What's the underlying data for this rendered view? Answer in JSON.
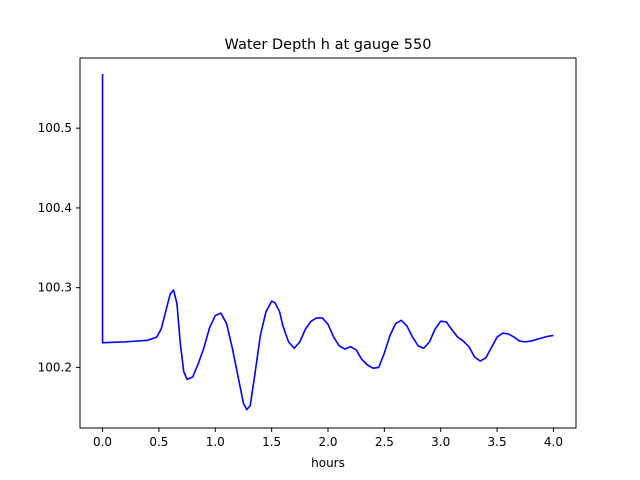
{
  "chart_data": {
    "type": "line",
    "title": "Water Depth h at gauge 550",
    "xlabel": "hours",
    "ylabel": "",
    "xlim": [
      -0.2,
      4.2
    ],
    "ylim": [
      100.124,
      100.588
    ],
    "xticks": [
      0.0,
      0.5,
      1.0,
      1.5,
      2.0,
      2.5,
      3.0,
      3.5,
      4.0
    ],
    "xtick_labels": [
      "0.0",
      "0.5",
      "1.0",
      "1.5",
      "2.0",
      "2.5",
      "3.0",
      "3.5",
      "4.0"
    ],
    "yticks": [
      100.2,
      100.3,
      100.4,
      100.5
    ],
    "ytick_labels": [
      "100.2",
      "100.3",
      "100.4",
      "100.5"
    ],
    "grid": false,
    "legend": "none",
    "series": [
      {
        "color": "#0000ff",
        "x": [
          0.0,
          0.0,
          0.01,
          0.2,
          0.4,
          0.48,
          0.52,
          0.56,
          0.6,
          0.63,
          0.66,
          0.69,
          0.72,
          0.75,
          0.8,
          0.85,
          0.9,
          0.95,
          1.0,
          1.05,
          1.1,
          1.15,
          1.2,
          1.25,
          1.28,
          1.31,
          1.35,
          1.4,
          1.45,
          1.5,
          1.53,
          1.57,
          1.6,
          1.65,
          1.7,
          1.75,
          1.8,
          1.85,
          1.9,
          1.95,
          2.0,
          2.05,
          2.1,
          2.15,
          2.2,
          2.25,
          2.3,
          2.35,
          2.4,
          2.45,
          2.5,
          2.55,
          2.6,
          2.65,
          2.7,
          2.75,
          2.8,
          2.85,
          2.9,
          2.95,
          3.0,
          3.05,
          3.1,
          3.15,
          3.2,
          3.25,
          3.3,
          3.35,
          3.4,
          3.45,
          3.5,
          3.55,
          3.6,
          3.65,
          3.7,
          3.75,
          3.8,
          3.85,
          3.9,
          3.95,
          4.0
        ],
        "y": [
          100.568,
          100.231,
          100.231,
          100.232,
          100.234,
          100.238,
          100.248,
          100.27,
          100.292,
          100.297,
          100.28,
          100.23,
          100.195,
          100.185,
          100.188,
          100.205,
          100.225,
          100.25,
          100.265,
          100.268,
          100.255,
          100.225,
          100.19,
          100.155,
          100.147,
          100.152,
          100.19,
          100.24,
          100.27,
          100.283,
          100.281,
          100.27,
          100.252,
          100.232,
          100.224,
          100.232,
          100.248,
          100.258,
          100.262,
          100.262,
          100.254,
          100.238,
          100.227,
          100.223,
          100.226,
          100.222,
          100.21,
          100.203,
          100.199,
          100.2,
          100.218,
          100.24,
          100.255,
          100.259,
          100.252,
          100.238,
          100.227,
          100.224,
          100.232,
          100.248,
          100.258,
          100.257,
          100.247,
          100.238,
          100.233,
          100.226,
          100.213,
          100.208,
          100.212,
          100.225,
          100.238,
          100.243,
          100.242,
          100.238,
          100.233,
          100.232,
          100.233,
          100.235,
          100.237,
          100.239,
          100.24
        ]
      }
    ]
  }
}
